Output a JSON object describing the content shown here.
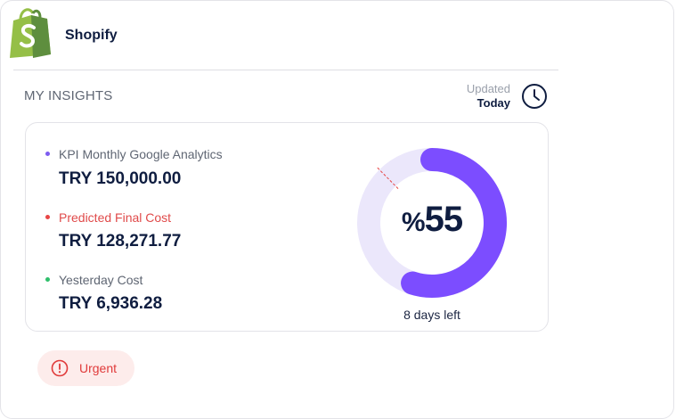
{
  "app": {
    "title": "Shopify"
  },
  "insights": {
    "title": "MY INSIGHTS",
    "updated_label": "Updated",
    "updated_value": "Today"
  },
  "metrics": [
    {
      "label": "KPI Monthly Google Analytics",
      "value": "TRY 150,000.00",
      "dot_color": "#7d5cf0",
      "label_color": "#5f6673"
    },
    {
      "label": "Predicted Final Cost",
      "value": "TRY 128,271.77",
      "dot_color": "#e84545",
      "label_color": "#e04a4a"
    },
    {
      "label": "Yesterday Cost",
      "value": "TRY 6,936.28",
      "dot_color": "#2fbf6b",
      "label_color": "#5f6673"
    }
  ],
  "progress": {
    "percent_sign": "%",
    "percent_value": "55",
    "fraction": 0.55,
    "days_left_label": "8 days left",
    "track_color": "#ebe7fb",
    "fill_color": "#7c4dff",
    "marker_color": "#e84545"
  },
  "status": {
    "label": "Urgent",
    "color": "#e03a3a",
    "background": "#fdeceb"
  },
  "icons": {
    "logo": "shopify-bag-icon",
    "clock": "clock-icon",
    "alert": "alert-circle-icon"
  }
}
